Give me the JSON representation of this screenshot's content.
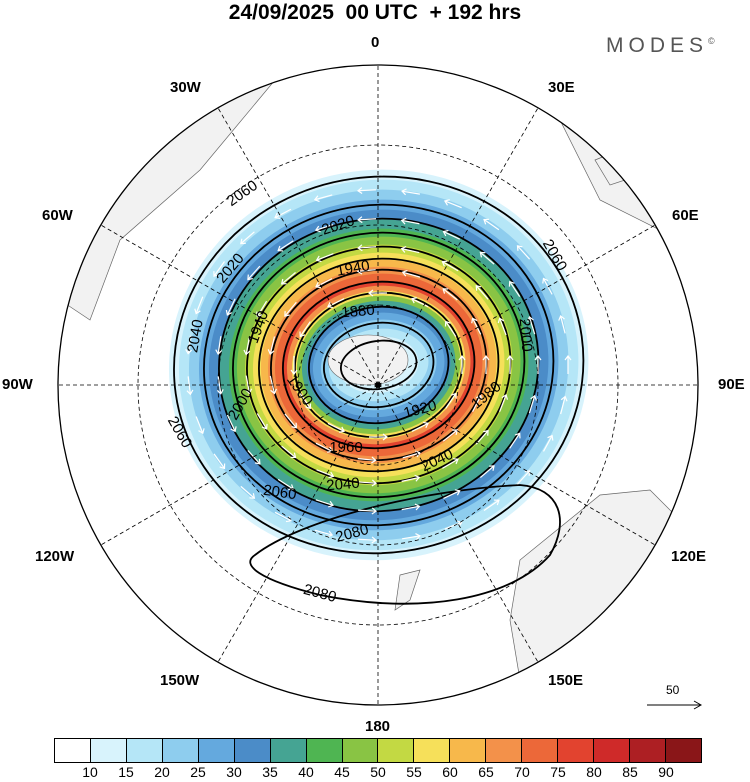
{
  "title": "24/09/2025  00 UTC  + 192 hrs",
  "brand": {
    "name": "MODES",
    "mark": "©"
  },
  "longitude_labels": {
    "lon_0": "0",
    "lon_30e": "30E",
    "lon_60e": "60E",
    "lon_90e": "90E",
    "lon_120e": "120E",
    "lon_150e": "150E",
    "lon_180": "180",
    "lon_150w": "150W",
    "lon_120w": "120W",
    "lon_90w": "90W",
    "lon_60w": "60W",
    "lon_30w": "30W"
  },
  "contour_labels": {
    "c1": "2060",
    "c2": "2020",
    "c3": "2020",
    "c4": "1940",
    "c5": "1880",
    "c6": "2060",
    "c7": "2000",
    "c8": "1940",
    "c9": "2040",
    "c10": "1900",
    "c11": "1920",
    "c12": "1980",
    "c13": "2000",
    "c14": "1960",
    "c15": "2060",
    "c16": "2040",
    "c17": "2040",
    "c18": "2060",
    "c19": "2080",
    "c20": "2080"
  },
  "wind_reference": {
    "label": "50"
  },
  "colors": {
    "background": "#ffffff",
    "land": "#f2f2f2",
    "coast": "#666666",
    "grid": "#000000",
    "contour": "#000000",
    "arrows": "#ffffff"
  },
  "colorbar": {
    "colors": [
      "#ffffff",
      "#d8f3fc",
      "#b5e6f7",
      "#8ecdee",
      "#64a9de",
      "#4b8cc8",
      "#45a493",
      "#4fb552",
      "#89c444",
      "#c3d943",
      "#f6e05a",
      "#f7b84b",
      "#f3914a",
      "#ec6839",
      "#e2432f",
      "#cf2a29",
      "#ad1f23",
      "#8a1618"
    ],
    "tick_labels": [
      "10",
      "15",
      "20",
      "25",
      "30",
      "35",
      "40",
      "45",
      "50",
      "55",
      "60",
      "65",
      "70",
      "75",
      "80",
      "85",
      "90"
    ]
  }
}
